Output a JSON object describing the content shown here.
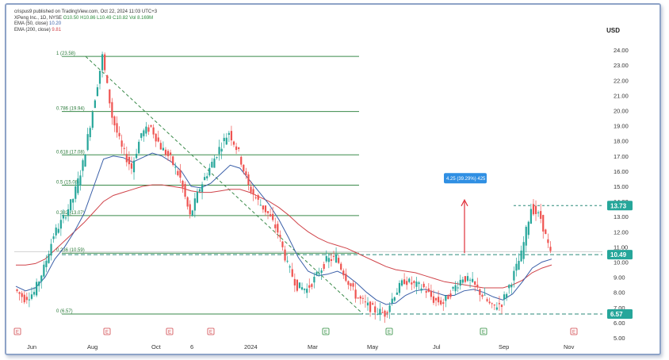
{
  "header": {
    "publisher": "crispus9 published on TradingView.com, Oct 22, 2024 11:03 UTC+3",
    "symbol_line": "XPeng Inc., 1D, NYSE",
    "ohlc": {
      "o": "O10.50",
      "h": "H10.86",
      "l": "L10.49",
      "c": "C10.82",
      "vol": "Vol 8.169M"
    },
    "ema50": "EMA (50, close)",
    "ema50_value": "10.20",
    "ema200": "EMA (200, close)",
    "ema200_value": "9.81",
    "currency": "USD"
  },
  "chart_data": {
    "type": "candlestick",
    "x_labels": [
      "Jun",
      "Aug",
      "Oct",
      "6",
      "2024",
      "Mar",
      "May",
      "Jul",
      "Sep",
      "Nov"
    ],
    "y_ticks": [
      "24.00",
      "23.00",
      "22.00",
      "21.00",
      "20.00",
      "19.00",
      "18.00",
      "17.00",
      "16.00",
      "15.00",
      "14.00",
      "13.00",
      "12.00",
      "11.00",
      "10.00",
      "9.00",
      "8.00",
      "7.00",
      "6.00",
      "5.00"
    ],
    "ylim": [
      5,
      25
    ],
    "fib_levels": [
      {
        "label": "1 (23.58)",
        "value": 23.58
      },
      {
        "label": "0.786 (19.94)",
        "value": 19.94
      },
      {
        "label": "0.618 (17.08)",
        "value": 17.08
      },
      {
        "label": "0.5 (15.08)",
        "value": 15.08
      },
      {
        "label": "0.382 (13.07)",
        "value": 13.07
      },
      {
        "label": "0.236 (10.59)",
        "value": 10.59
      },
      {
        "label": "0 (6.57)",
        "value": 6.57
      }
    ],
    "price_tags": [
      {
        "label": "13.73",
        "value": 13.73,
        "color": "#26a69a"
      },
      {
        "label": "10.49",
        "value": 10.49,
        "color": "#26a69a"
      },
      {
        "label": "6.57",
        "value": 6.57,
        "color": "#26a69a"
      }
    ],
    "measure_label": "4.25 (39.29%) 425",
    "close_prices": [
      8.2,
      7.6,
      8.0,
      9.6,
      11.8,
      12.9,
      14.2,
      16.5,
      20.0,
      23.58,
      19.6,
      17.5,
      16.2,
      18.5,
      18.9,
      17.6,
      16.8,
      15.5,
      13.0,
      14.9,
      16.2,
      17.5,
      18.6,
      17.2,
      15.0,
      14.0,
      13.2,
      12.0,
      9.8,
      8.4,
      8.2,
      9.1,
      10.1,
      10.3,
      9.0,
      7.8,
      7.2,
      6.8,
      6.6,
      7.9,
      8.8,
      8.5,
      8.3,
      7.5,
      7.3,
      8.2,
      9.0,
      8.6,
      7.8,
      7.0,
      7.3,
      8.8,
      10.5,
      13.6,
      12.9,
      10.5
    ],
    "ema50_values": [
      8.4,
      8.1,
      8.3,
      9.0,
      10.2,
      11.0,
      12.0,
      13.2,
      15.0,
      16.8,
      17.0,
      16.9,
      16.6,
      16.9,
      17.2,
      17.0,
      16.6,
      16.0,
      15.0,
      14.9,
      15.2,
      15.8,
      16.4,
      16.2,
      15.4,
      14.6,
      13.8,
      12.8,
      11.6,
      10.3,
      9.4,
      9.1,
      9.2,
      9.4,
      9.1,
      8.6,
      8.0,
      7.5,
      7.2,
      7.3,
      7.8,
      8.1,
      8.2,
      8.0,
      7.8,
      7.8,
      8.1,
      8.2,
      8.0,
      7.7,
      7.5,
      7.9,
      8.7,
      9.6,
      10.0,
      10.2
    ],
    "ema200_values": [
      9.8,
      9.8,
      9.9,
      10.2,
      10.8,
      11.4,
      12.0,
      12.6,
      13.3,
      14.0,
      14.4,
      14.6,
      14.8,
      15.0,
      15.1,
      15.1,
      15.0,
      14.9,
      14.7,
      14.6,
      14.6,
      14.7,
      14.8,
      14.8,
      14.6,
      14.3,
      14.0,
      13.6,
      13.1,
      12.5,
      12.0,
      11.6,
      11.3,
      11.1,
      10.9,
      10.6,
      10.3,
      10.0,
      9.7,
      9.5,
      9.4,
      9.3,
      9.1,
      8.9,
      8.7,
      8.6,
      8.5,
      8.4,
      8.3,
      8.3,
      8.3,
      8.5,
      8.8,
      9.3,
      9.6,
      9.81
    ]
  }
}
